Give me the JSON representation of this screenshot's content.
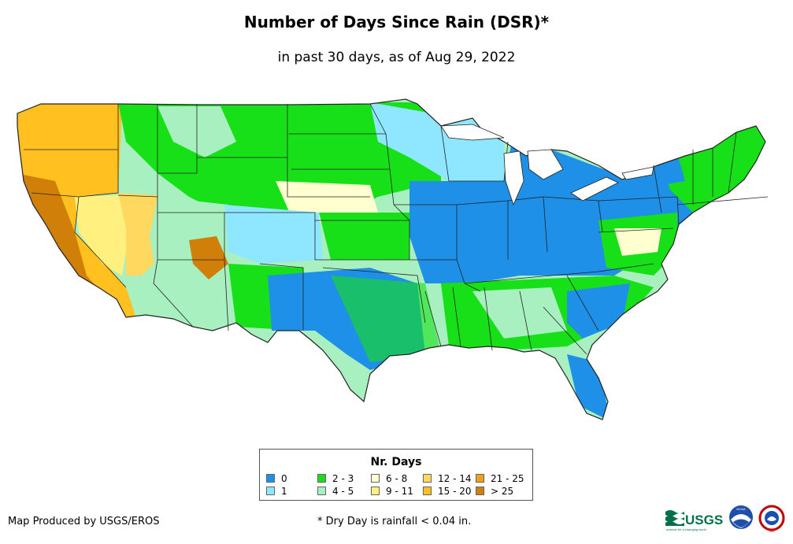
{
  "title": "Number of Days Since Rain (DSR)*",
  "subtitle": "in past 30 days, as of Aug 29, 2022",
  "legend": {
    "title": "Nr. Days",
    "items": [
      {
        "label": "0",
        "color": "#1e90e8"
      },
      {
        "label": "1",
        "color": "#8ee6ff"
      },
      {
        "label": "2 - 3",
        "color": "#18e018"
      },
      {
        "label": "4 - 5",
        "color": "#a8f0c0"
      },
      {
        "label": "6 - 8",
        "color": "#ffffd0"
      },
      {
        "label": "9 - 11",
        "color": "#fff080"
      },
      {
        "label": "12 - 14",
        "color": "#ffd860"
      },
      {
        "label": "15 - 20",
        "color": "#ffc020"
      },
      {
        "label": "21 - 25",
        "color": "#f0a020"
      },
      {
        "label": "> 25",
        "color": "#d08008"
      }
    ]
  },
  "credit": "Map Produced by USGS/EROS",
  "footnote": "* Dry Day is rainfall < 0.04 in.",
  "logos": {
    "usgs": "USGS",
    "usgs_tagline": "science for a changing world",
    "noaa": "NOAA",
    "nws": "NWS"
  },
  "icons": [
    "usgs-logo-icon",
    "noaa-logo-icon",
    "nws-logo-icon"
  ]
}
